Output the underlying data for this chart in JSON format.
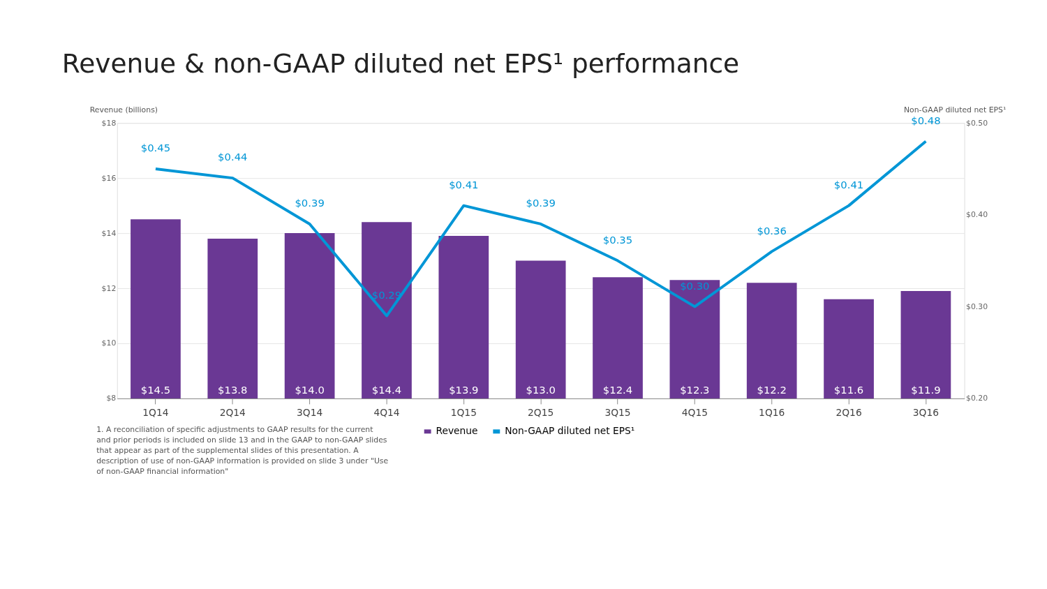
{
  "chart_data": {
    "type": "bar",
    "title": "Revenue & non-GAAP diluted net EPS¹ performance",
    "ylabel": "Revenue (billions)",
    "y2label": "Non-GAAP diluted net EPS¹",
    "categories": [
      "1Q14",
      "2Q14",
      "3Q14",
      "4Q14",
      "1Q15",
      "2Q15",
      "3Q15",
      "4Q15",
      "1Q16",
      "2Q16",
      "3Q16"
    ],
    "series": [
      {
        "name": "Revenue",
        "color": "#6a3894",
        "values": [
          14.5,
          13.8,
          14.0,
          14.4,
          13.9,
          13.0,
          12.4,
          12.3,
          12.2,
          11.6,
          11.9
        ],
        "value_labels": [
          "$14.5",
          "$13.8",
          "$14.0",
          "$14.4",
          "$13.9",
          "$13.0",
          "$12.4",
          "$12.3",
          "$12.2",
          "$11.6",
          "$11.9"
        ]
      },
      {
        "name": "Non-GAAP diluted net EPS¹",
        "type": "line",
        "axis": "y2",
        "color": "#0096d6",
        "values": [
          0.45,
          0.44,
          0.39,
          0.29,
          0.41,
          0.39,
          0.35,
          0.3,
          0.36,
          0.41,
          0.48
        ],
        "value_labels": [
          "$0.45",
          "$0.44",
          "$0.39",
          "$0.29",
          "$0.41",
          "$0.39",
          "$0.35",
          "$0.30",
          "$0.36",
          "$0.41",
          "$0.48"
        ]
      }
    ],
    "ylim": [
      8,
      18
    ],
    "yticks": [
      {
        "value": 8,
        "label": "$8"
      },
      {
        "value": 10,
        "label": "$10"
      },
      {
        "value": 12,
        "label": "$12"
      },
      {
        "value": 14,
        "label": "$14"
      },
      {
        "value": 16,
        "label": "$16"
      },
      {
        "value": 18,
        "label": "$18"
      }
    ],
    "y2lim": [
      0.2,
      0.5
    ],
    "y2ticks": [
      {
        "value": 0.2,
        "label": "$0.20"
      },
      {
        "value": 0.3,
        "label": "$0.30"
      },
      {
        "value": 0.4,
        "label": "$0.40"
      },
      {
        "value": 0.5,
        "label": "$0.50"
      }
    ],
    "grid": "y",
    "legend": "bottom",
    "marker": "none",
    "line_style": "solid",
    "annotations": [
      "1. A reconciliation of specific adjustments to GAAP results for the current and prior periods is included on slide 13 and in the GAAP to non-GAAP slides that appear as part of the supplemental slides of this presentation. A description of use of non-GAAP information is provided on slide 3 under \"Use of non-GAAP financial information\""
    ]
  }
}
